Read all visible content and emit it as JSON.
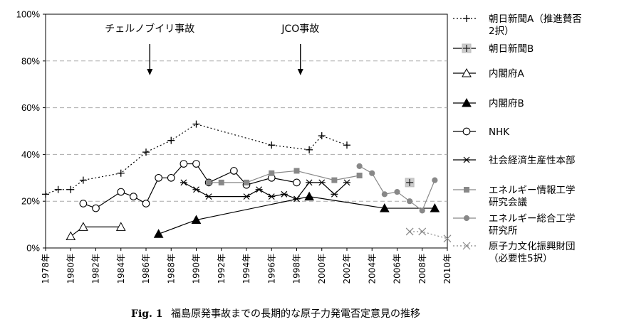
{
  "chart_data": {
    "type": "line",
    "caption_label": "Fig. 1",
    "caption_text": "福島原発事故までの長期的な原子力発電否定意見の推移",
    "ylim": [
      0,
      100
    ],
    "xlim": [
      1978,
      2010
    ],
    "y_ticks": [
      {
        "value": 0,
        "label": "0%"
      },
      {
        "value": 20,
        "label": "20%"
      },
      {
        "value": 40,
        "label": "40%"
      },
      {
        "value": 60,
        "label": "60%"
      },
      {
        "value": 80,
        "label": "80%"
      },
      {
        "value": 100,
        "label": "100%"
      }
    ],
    "x_ticks": [
      {
        "value": 1978,
        "label": "1978年"
      },
      {
        "value": 1980,
        "label": "1980年"
      },
      {
        "value": 1982,
        "label": "1982年"
      },
      {
        "value": 1984,
        "label": "1984年"
      },
      {
        "value": 1986,
        "label": "1986年"
      },
      {
        "value": 1988,
        "label": "1988年"
      },
      {
        "value": 1990,
        "label": "1990年"
      },
      {
        "value": 1992,
        "label": "1992年"
      },
      {
        "value": 1994,
        "label": "1994年"
      },
      {
        "value": 1996,
        "label": "1996年"
      },
      {
        "value": 1998,
        "label": "1998年"
      },
      {
        "value": 2000,
        "label": "2000年"
      },
      {
        "value": 2002,
        "label": "2002年"
      },
      {
        "value": 2004,
        "label": "2004年"
      },
      {
        "value": 2006,
        "label": "2006年"
      },
      {
        "value": 2008,
        "label": "2008年"
      },
      {
        "value": 2010,
        "label": "2010年"
      }
    ],
    "gridlines_y": [
      20,
      40,
      60,
      80
    ],
    "annotations": [
      {
        "label": "チェルノブイリ事故",
        "x": 1986.3
      },
      {
        "label": "JCO事故",
        "x": 1998.3
      }
    ],
    "series": [
      {
        "key": "asahi_a",
        "legend_lines": [
          "朝日新聞A（推進賛否",
          "2択）"
        ],
        "marker": "plus",
        "line": "dotted",
        "color": "#000000",
        "x": [
          1978,
          1979,
          1980,
          1981,
          1984,
          1986,
          1988,
          1990,
          1996,
          1999,
          2000,
          2002
        ],
        "y": [
          23,
          25,
          25,
          29,
          32,
          41,
          46,
          53,
          44,
          42,
          48,
          44
        ]
      },
      {
        "key": "asahi_b",
        "legend_lines": [
          "朝日新聞B"
        ],
        "marker": "plus-box",
        "line": "none",
        "color": "#000000",
        "x": [
          2007
        ],
        "y": [
          28
        ]
      },
      {
        "key": "cabinet_a",
        "legend_lines": [
          "内閣府A"
        ],
        "marker": "triangle-open",
        "line": "solid",
        "color": "#000000",
        "x": [
          1980,
          1981,
          1984
        ],
        "y": [
          5,
          9,
          9
        ]
      },
      {
        "key": "cabinet_b",
        "legend_lines": [
          "内閣府B"
        ],
        "marker": "triangle-filled",
        "line": "solid",
        "color": "#000000",
        "x": [
          1987,
          1990,
          1999,
          2005,
          2009
        ],
        "y": [
          6,
          12,
          22,
          17,
          17
        ]
      },
      {
        "key": "nhk",
        "legend_lines": [
          "NHK"
        ],
        "marker": "circle-open",
        "line": "solid",
        "color": "#000000",
        "x": [
          1981,
          1982,
          1984,
          1985,
          1986,
          1987,
          1988,
          1989,
          1990,
          1991,
          1993,
          1994,
          1996,
          1998
        ],
        "y": [
          19,
          17,
          24,
          22,
          19,
          30,
          30,
          36,
          36,
          28,
          33,
          27,
          30,
          28
        ]
      },
      {
        "key": "shakai",
        "legend_lines": [
          "社会経済生産性本部"
        ],
        "marker": "asterisk",
        "line": "solid",
        "color": "#000000",
        "x": [
          1989,
          1990,
          1991,
          1994,
          1995,
          1996,
          1997,
          1998,
          1999,
          2000,
          2001,
          2002
        ],
        "y": [
          28,
          25,
          22,
          22,
          25,
          22,
          23,
          21,
          28,
          28,
          23,
          28
        ]
      },
      {
        "key": "energy_info",
        "legend_lines": [
          "エネルギー情報工学",
          "研究会議"
        ],
        "marker": "square",
        "line": "solid",
        "color": "#888888",
        "x": [
          1991,
          1992,
          1994,
          1996,
          1998,
          2001,
          2003
        ],
        "y": [
          28,
          28,
          28,
          32,
          33,
          29,
          31
        ]
      },
      {
        "key": "energy_sogo",
        "legend_lines": [
          "エネルギー総合工学",
          "研究所"
        ],
        "marker": "circle-filled",
        "line": "solid",
        "color": "#888888",
        "x": [
          2003,
          2004,
          2005,
          2006,
          2007,
          2008,
          2009
        ],
        "y": [
          35,
          32,
          23,
          24,
          20,
          16,
          29
        ]
      },
      {
        "key": "genshiryoku",
        "legend_lines": [
          "原子力文化振興財団",
          "（必要性5択）"
        ],
        "marker": "x",
        "line": "dotted",
        "color": "#888888",
        "x": [
          2007,
          2008,
          2010
        ],
        "y": [
          7,
          7,
          4
        ]
      }
    ]
  }
}
